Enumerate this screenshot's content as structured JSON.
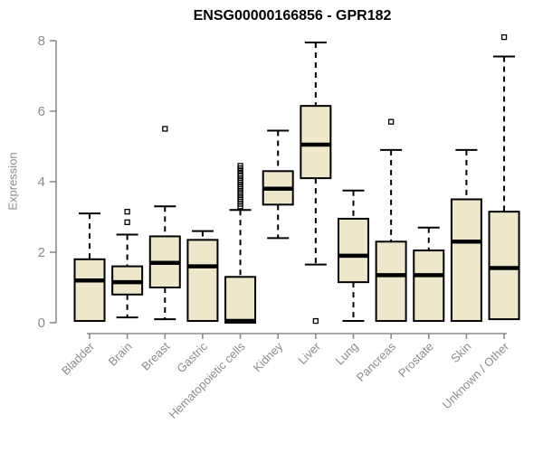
{
  "chart_data": {
    "type": "boxplot",
    "title": "ENSG00000166856 - GPR182",
    "xlabel": "",
    "ylabel": "Expression",
    "ylim": [
      0,
      8
    ],
    "yticks": [
      0,
      2,
      4,
      6,
      8
    ],
    "grid": false,
    "legend": "none",
    "box_fill_color": "#EDE8CB",
    "box_edge_color": "#000000",
    "axis_color": "#8c8c8c",
    "categories": [
      "Bladder",
      "Brain",
      "Breast",
      "Gastric",
      "Hematopoietic cells",
      "Kidney",
      "Liver",
      "Lung",
      "Pancreas",
      "Prostate",
      "Skin",
      "Unknown / Other"
    ],
    "boxes": [
      {
        "category": "Bladder",
        "whisker_low": 0.05,
        "q1": 0.05,
        "median": 1.2,
        "q3": 1.8,
        "whisker_high": 3.1,
        "outliers": []
      },
      {
        "category": "Brain",
        "whisker_low": 0.15,
        "q1": 0.8,
        "median": 1.15,
        "q3": 1.6,
        "whisker_high": 2.5,
        "outliers": [
          2.85,
          3.15
        ]
      },
      {
        "category": "Breast",
        "whisker_low": 0.1,
        "q1": 1.0,
        "median": 1.7,
        "q3": 2.45,
        "whisker_high": 3.3,
        "outliers": [
          5.5
        ]
      },
      {
        "category": "Gastric",
        "whisker_low": 0.05,
        "q1": 0.05,
        "median": 1.6,
        "q3": 2.35,
        "whisker_high": 2.6,
        "outliers": []
      },
      {
        "category": "Hematopoietic cells",
        "whisker_low": 0.0,
        "q1": 0.0,
        "median": 0.05,
        "q3": 1.3,
        "whisker_high": 3.2,
        "outliers": [
          3.3,
          3.37,
          3.44,
          3.5,
          3.56,
          3.62,
          3.68,
          3.74,
          3.8,
          3.86,
          3.92,
          3.98,
          4.04,
          4.1,
          4.16,
          4.22,
          4.3,
          4.38,
          4.45
        ]
      },
      {
        "category": "Kidney",
        "whisker_low": 2.4,
        "q1": 3.35,
        "median": 3.8,
        "q3": 4.3,
        "whisker_high": 5.45,
        "outliers": []
      },
      {
        "category": "Liver",
        "whisker_low": 1.65,
        "q1": 4.1,
        "median": 5.05,
        "q3": 6.15,
        "whisker_high": 7.95,
        "outliers": [
          0.05
        ]
      },
      {
        "category": "Lung",
        "whisker_low": 0.05,
        "q1": 1.15,
        "median": 1.9,
        "q3": 2.95,
        "whisker_high": 3.75,
        "outliers": []
      },
      {
        "category": "Pancreas",
        "whisker_low": 0.05,
        "q1": 0.05,
        "median": 1.35,
        "q3": 2.3,
        "whisker_high": 4.9,
        "outliers": [
          5.7
        ]
      },
      {
        "category": "Prostate",
        "whisker_low": 0.05,
        "q1": 0.05,
        "median": 1.35,
        "q3": 2.05,
        "whisker_high": 2.7,
        "outliers": []
      },
      {
        "category": "Skin",
        "whisker_low": 0.05,
        "q1": 0.05,
        "median": 2.3,
        "q3": 3.5,
        "whisker_high": 4.9,
        "outliers": []
      },
      {
        "category": "Unknown / Other",
        "whisker_low": 0.1,
        "q1": 0.1,
        "median": 1.55,
        "q3": 3.15,
        "whisker_high": 7.55,
        "outliers": [
          8.1
        ]
      }
    ]
  }
}
